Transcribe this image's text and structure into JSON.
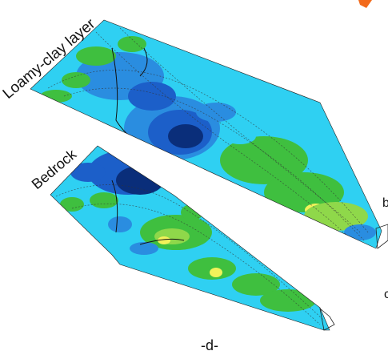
{
  "layers": [
    {
      "id": "loamy-clay",
      "label": "Loamy-clay layer"
    },
    {
      "id": "bedrock",
      "label": "Bedrock"
    }
  ],
  "panel_label": "-d-",
  "edge_fragments": {
    "b": "b",
    "c": "c"
  },
  "colors": {
    "deep": "#0a2e7a",
    "dark_blue": "#1c5fc9",
    "mid_blue": "#2a8de0",
    "cyan": "#2fd0f2",
    "green": "#3fbf3f",
    "light_green": "#8fd84a",
    "yellow": "#f2f25a",
    "orange_accent": "#f26a1b"
  }
}
